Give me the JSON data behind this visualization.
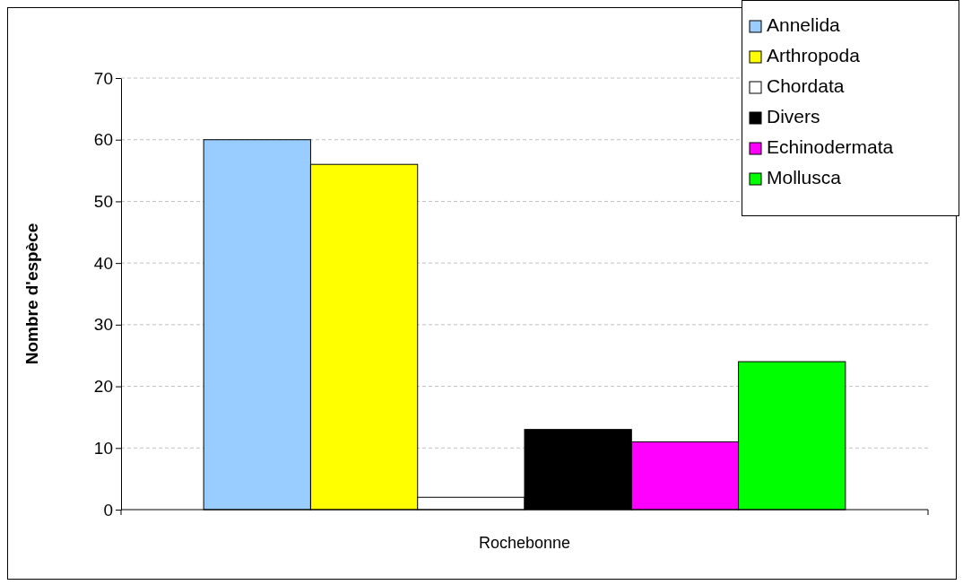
{
  "chart_data": {
    "type": "bar",
    "ylabel": "Nombre d'espèce",
    "categories": [
      "Rochebonne"
    ],
    "series": [
      {
        "name": "Annelida",
        "color": "#99ccff",
        "values": [
          60
        ]
      },
      {
        "name": "Arthropoda",
        "color": "#ffff00",
        "values": [
          56
        ]
      },
      {
        "name": "Chordata",
        "color": "#ffffff",
        "values": [
          2
        ]
      },
      {
        "name": "Divers",
        "color": "#000000",
        "values": [
          13
        ]
      },
      {
        "name": "Echinodermata",
        "color": "#ff00ff",
        "values": [
          11
        ]
      },
      {
        "name": "Mollusca",
        "color": "#00ff00",
        "values": [
          24
        ]
      }
    ],
    "ylim": [
      0,
      70
    ],
    "yticks": [
      0,
      10,
      20,
      30,
      40,
      50,
      60,
      70
    ],
    "grid": "y",
    "legend": "top right"
  }
}
